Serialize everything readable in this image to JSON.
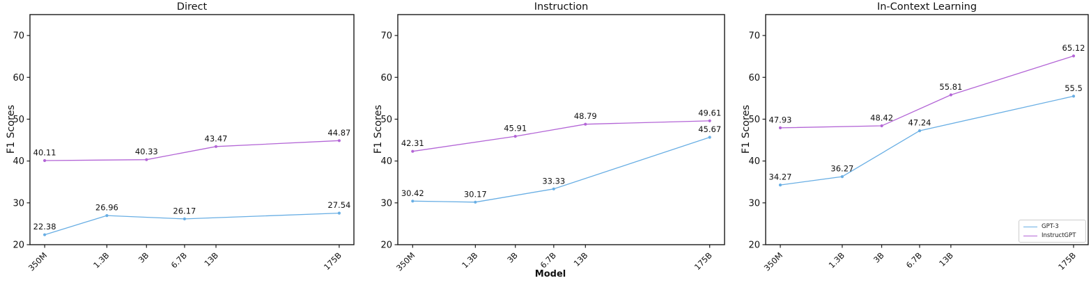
{
  "figure": {
    "xlabel": "Model",
    "background": "#ffffff"
  },
  "chart_data": [
    {
      "type": "line",
      "title": "Direct",
      "ylabel": "F1 Scores",
      "ylim": [
        20,
        75
      ],
      "yticks": [
        20,
        30,
        40,
        50,
        60,
        70
      ],
      "x_scale": "log",
      "x_tick_labels": [
        "350M",
        "1.3B",
        "3B",
        "6.7B",
        "13B",
        "175B"
      ],
      "show_legend": false,
      "series": [
        {
          "name": "GPT-3",
          "color": "#68aee4",
          "points": [
            {
              "x": "350M",
              "y": 22.38
            },
            {
              "x": "1.3B",
              "y": 26.96
            },
            {
              "x": "6.7B",
              "y": 26.17
            },
            {
              "x": "175B",
              "y": 27.54
            }
          ]
        },
        {
          "name": "InstructGPT",
          "color": "#b365d6",
          "points": [
            {
              "x": "350M",
              "y": 40.11
            },
            {
              "x": "3B",
              "y": 40.33
            },
            {
              "x": "13B",
              "y": 43.47
            },
            {
              "x": "175B",
              "y": 44.87
            }
          ]
        }
      ]
    },
    {
      "type": "line",
      "title": "Instruction",
      "ylabel": "F1 Scores",
      "ylim": [
        20,
        75
      ],
      "yticks": [
        20,
        30,
        40,
        50,
        60,
        70
      ],
      "x_scale": "log",
      "x_tick_labels": [
        "350M",
        "1.3B",
        "3B",
        "6.7B",
        "13B",
        "175B"
      ],
      "show_legend": false,
      "series": [
        {
          "name": "GPT-3",
          "color": "#68aee4",
          "points": [
            {
              "x": "350M",
              "y": 30.42
            },
            {
              "x": "1.3B",
              "y": 30.17
            },
            {
              "x": "6.7B",
              "y": 33.33
            },
            {
              "x": "175B",
              "y": 45.67
            }
          ]
        },
        {
          "name": "InstructGPT",
          "color": "#b365d6",
          "points": [
            {
              "x": "350M",
              "y": 42.31
            },
            {
              "x": "3B",
              "y": 45.91
            },
            {
              "x": "13B",
              "y": 48.79
            },
            {
              "x": "175B",
              "y": 49.61
            }
          ]
        }
      ]
    },
    {
      "type": "line",
      "title": "In-Context Learning",
      "ylabel": "F1 Scores",
      "ylim": [
        20,
        75
      ],
      "yticks": [
        20,
        30,
        40,
        50,
        60,
        70
      ],
      "x_scale": "log",
      "x_tick_labels": [
        "350M",
        "1.3B",
        "3B",
        "6.7B",
        "13B",
        "175B"
      ],
      "show_legend": true,
      "legend_position": "lower right",
      "series": [
        {
          "name": "GPT-3",
          "color": "#68aee4",
          "points": [
            {
              "x": "350M",
              "y": 34.27
            },
            {
              "x": "1.3B",
              "y": 36.27
            },
            {
              "x": "6.7B",
              "y": 47.24
            },
            {
              "x": "175B",
              "y": 55.5
            }
          ]
        },
        {
          "name": "InstructGPT",
          "color": "#b365d6",
          "points": [
            {
              "x": "350M",
              "y": 47.93
            },
            {
              "x": "3B",
              "y": 48.42
            },
            {
              "x": "13B",
              "y": 55.81
            },
            {
              "x": "175B",
              "y": 65.12
            }
          ]
        }
      ]
    }
  ]
}
